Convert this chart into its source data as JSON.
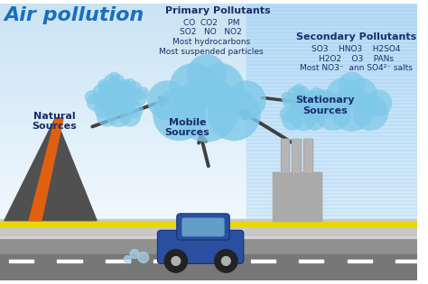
{
  "title": "Air pollution",
  "title_color": "#1a6ec0",
  "title_fontsize": 16,
  "primary_label": "Primary Pollutants",
  "primary_text": [
    "CO  CO2    PM",
    "SO2   NO   NO2",
    "Most hydrocarbons",
    "Most suspended particles"
  ],
  "secondary_label": "Secondary Pollutants",
  "secondary_text": [
    "SO3    HNO3    H2SO4",
    "H2O2    O3    PANs",
    "Most NO3⁻  ann SO4²⁻ salts"
  ],
  "source_labels": [
    "Natural\nSources",
    "Mobile\nSources",
    "Stationary\nSources"
  ],
  "cloud_color": "#7ec8e8",
  "cloud_alpha": 0.75,
  "arrow_color": "#404040",
  "text_color": "#1a2e6e",
  "label_fontsize": 8,
  "source_fontsize": 8,
  "chem_fontsize": 6.5,
  "sky_top": "#e8f6ff",
  "sky_mid": "#c5e8f8",
  "sky_bot": "#b0d8f0",
  "ground_color": "#c8c8c8",
  "road_color": "#909090",
  "road_dark": "#777777",
  "yellow_line": "#e8d800",
  "volcano_color": "#505050",
  "lava_color": "#e06010",
  "factory_color": "#b0b0b0",
  "chimney_color": "#a0a0a0",
  "car_body": "#2a4fa0",
  "car_window": "#7ab8d8",
  "wheel_color": "#222222",
  "hub_color": "#b0b0b0"
}
